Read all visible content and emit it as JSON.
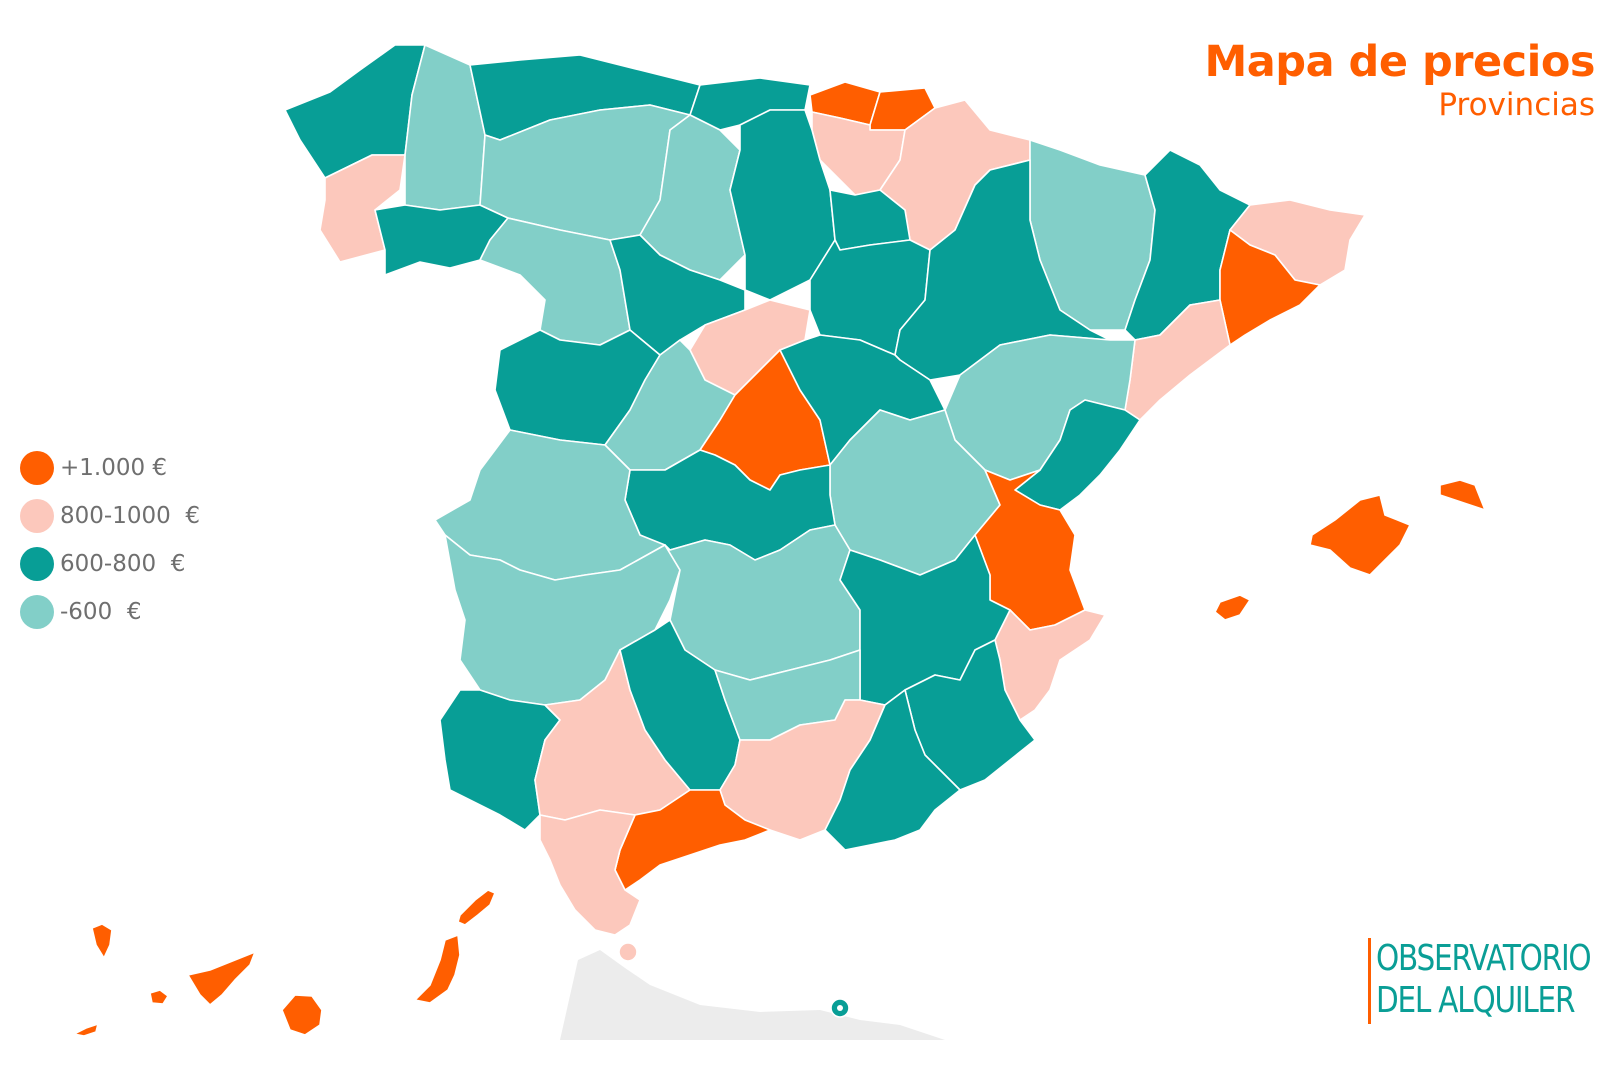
{
  "header": {
    "title": "Mapa de precios",
    "subtitle": "Provincias"
  },
  "legend": {
    "items": [
      {
        "label": "+1.000 €",
        "color": "#ff5e00"
      },
      {
        "label": "800-1000  €",
        "color": "#fcc8bc"
      },
      {
        "label": "600-800  €",
        "color": "#089e96"
      },
      {
        "label": "-600  €",
        "color": "#82cfc8"
      }
    ]
  },
  "colors": {
    "over_1000": "#ff5e00",
    "r800_1000": "#fcc8bc",
    "r600_800": "#089e96",
    "under_600": "#82cfc8",
    "outside": "#ececec"
  },
  "brand": {
    "line1": "OBSERVATORIO",
    "line2": "DEL ALQUILER"
  }
}
